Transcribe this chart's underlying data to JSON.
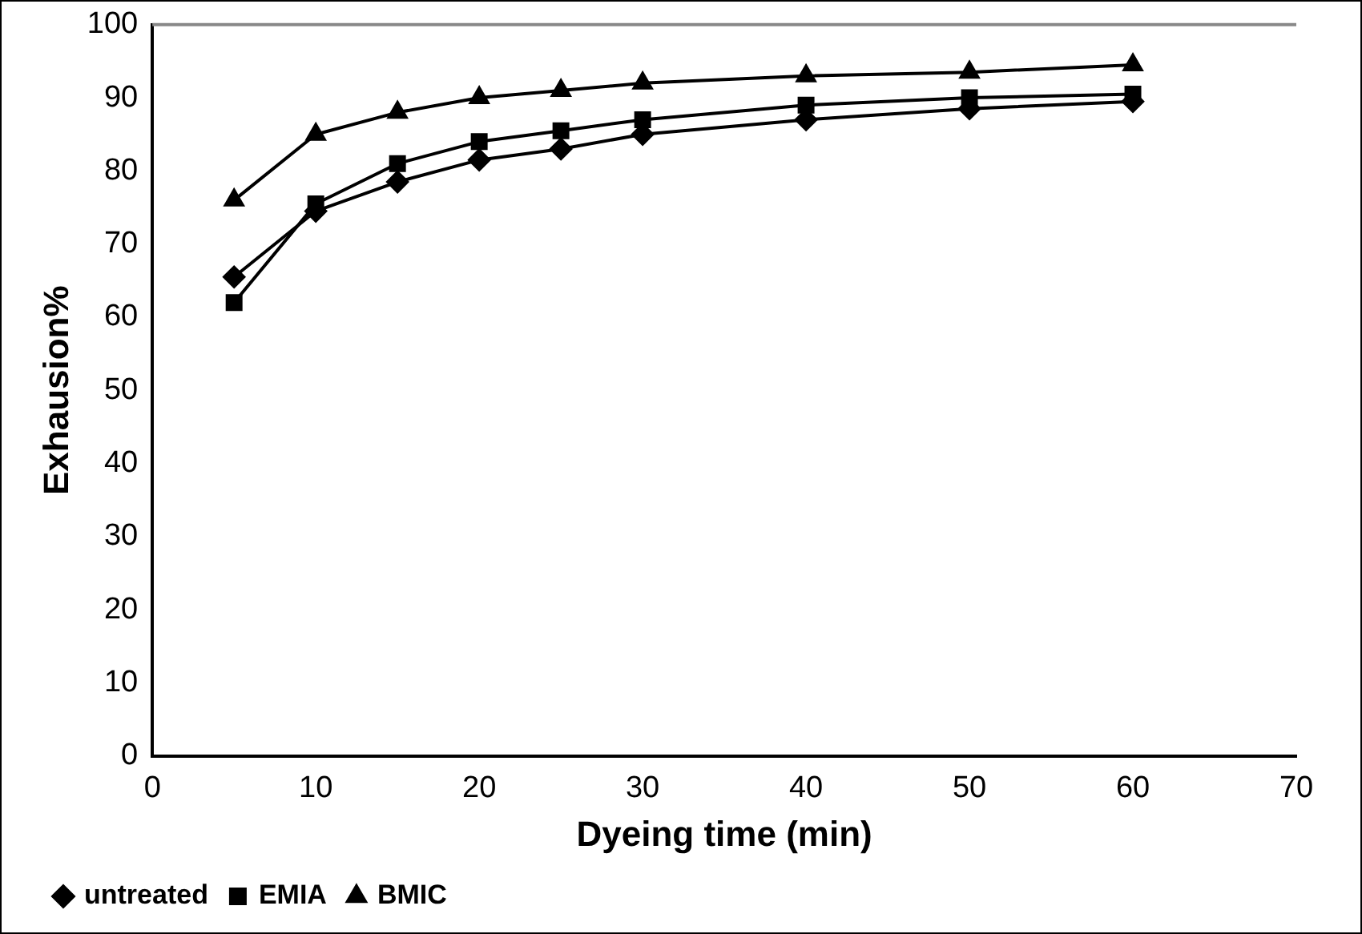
{
  "chart_data": {
    "type": "line",
    "xlabel": "Dyeing time (min)",
    "ylabel": "Exhausion%",
    "x": [
      5,
      10,
      15,
      20,
      25,
      30,
      40,
      50,
      60
    ],
    "series": [
      {
        "name": "untreated",
        "color": "#000000",
        "marker": "diamond",
        "values": [
          65.5,
          74.5,
          78.5,
          81.5,
          83,
          85,
          87,
          88.5,
          89.5
        ]
      },
      {
        "name": "EMIA",
        "color": "#000000",
        "marker": "square",
        "values": [
          62,
          75.5,
          81,
          84,
          85.5,
          87,
          89,
          90,
          90.5
        ]
      },
      {
        "name": "BMIC",
        "color": "#000000",
        "marker": "triangle",
        "values": [
          76,
          85,
          88,
          90,
          91,
          92,
          93,
          93.5,
          94.5
        ]
      }
    ],
    "xlim": [
      0,
      70
    ],
    "xticks": [
      0,
      10,
      20,
      30,
      40,
      50,
      60,
      70
    ],
    "ylim": [
      0,
      100
    ],
    "yticks": [
      0,
      10,
      20,
      30,
      40,
      50,
      60,
      70,
      80,
      90,
      100
    ],
    "grid": false,
    "legend": "bottom left",
    "line_style": "solid"
  }
}
